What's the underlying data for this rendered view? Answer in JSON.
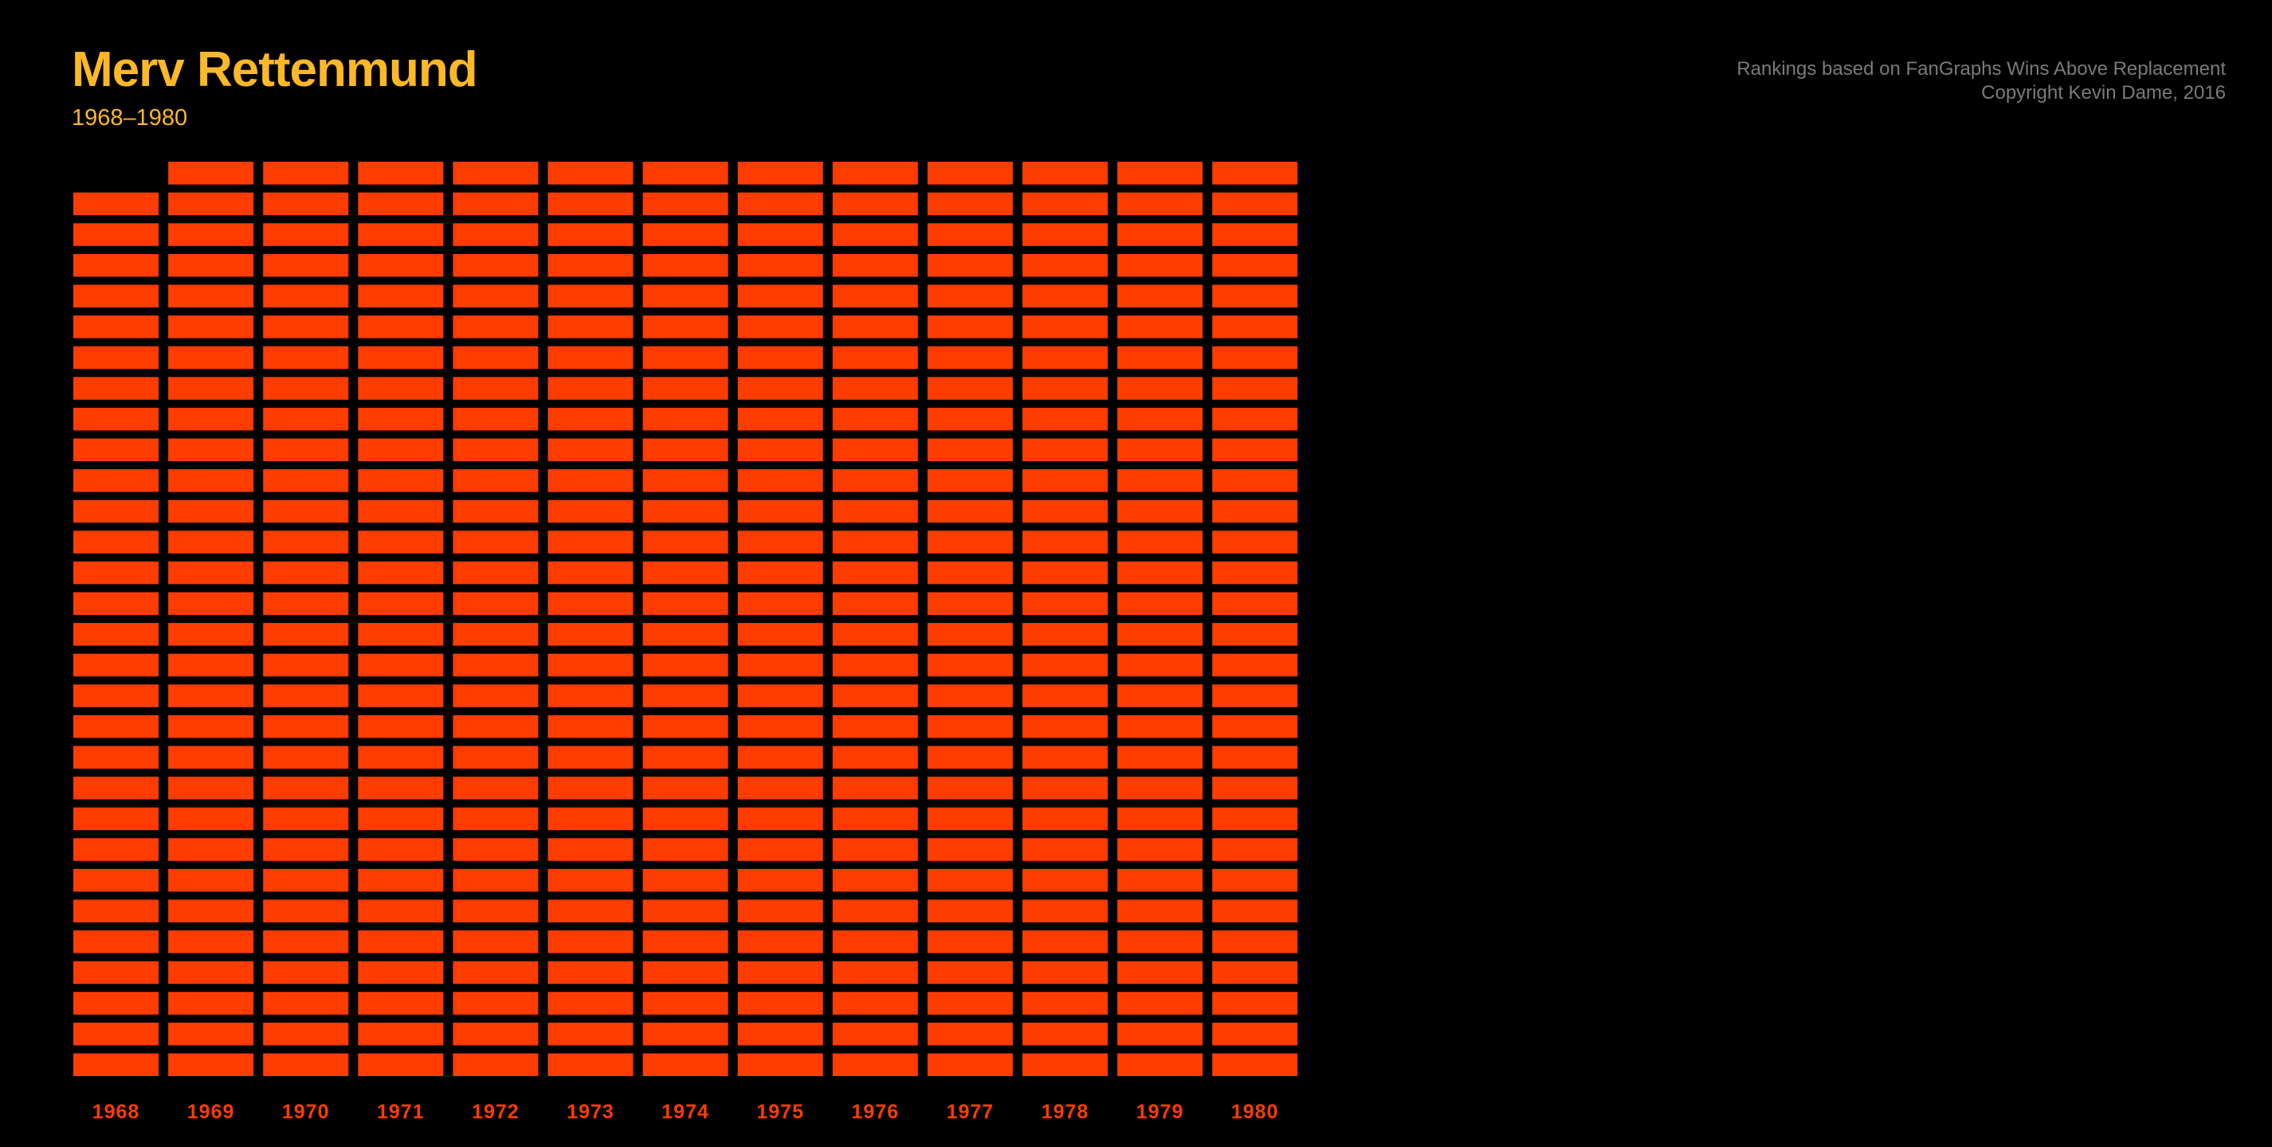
{
  "header": {
    "title": "Merv Rettenmund",
    "subtitle": "1968–1980"
  },
  "credits": {
    "line1": "Rankings based on FanGraphs Wins Above Replacement",
    "line2": "Copyright Kevin Dame, 2016"
  },
  "colors": {
    "background": "#000000",
    "title": "#fdb827",
    "subtitle": "#fdb827",
    "credits": "#7a7a7a",
    "block": "#ff3c00",
    "year_label": "#ff3c00"
  },
  "chart_data": {
    "type": "bar",
    "categories": [
      "1968",
      "1969",
      "1970",
      "1971",
      "1972",
      "1973",
      "1974",
      "1975",
      "1976",
      "1977",
      "1978",
      "1979",
      "1980"
    ],
    "values": [
      29,
      30,
      30,
      30,
      30,
      30,
      30,
      30,
      30,
      30,
      30,
      30,
      30
    ],
    "ylim": [
      0,
      30
    ],
    "grid": false,
    "legend": "none"
  }
}
